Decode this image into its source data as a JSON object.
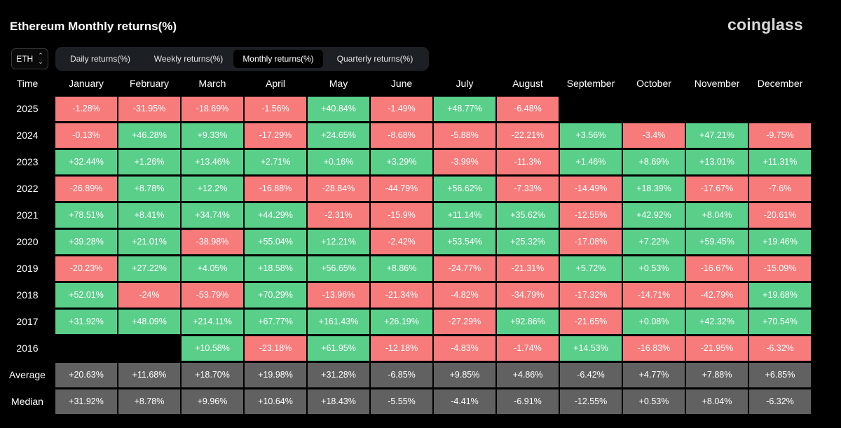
{
  "header": {
    "title": "Ethereum Monthly returns(%)",
    "brand": "coinglass",
    "asset": "ETH"
  },
  "tabs": [
    {
      "label": "Daily returns(%)",
      "active": false
    },
    {
      "label": "Weekly returns(%)",
      "active": false
    },
    {
      "label": "Monthly returns(%)",
      "active": true
    },
    {
      "label": "Quarterly returns(%)",
      "active": false
    }
  ],
  "colors": {
    "positive": "#59cf8a",
    "negative": "#f77b7b",
    "summary": "#616161",
    "background": "#000000"
  },
  "chart_data": {
    "type": "table",
    "corner_label": "Time",
    "columns": [
      "January",
      "February",
      "March",
      "April",
      "May",
      "June",
      "July",
      "August",
      "September",
      "October",
      "November",
      "December"
    ],
    "rows": [
      {
        "label": "2025",
        "values": [
          "-1.28%",
          "-31.95%",
          "-18.69%",
          "-1.56%",
          "+40.84%",
          "-1.49%",
          "+48.77%",
          "-6.48%",
          "",
          "",
          "",
          ""
        ]
      },
      {
        "label": "2024",
        "values": [
          "-0.13%",
          "+46.28%",
          "+9.33%",
          "-17.29%",
          "+24.65%",
          "-8.68%",
          "-5.88%",
          "-22.21%",
          "+3.56%",
          "-3.4%",
          "+47.21%",
          "-9.75%"
        ]
      },
      {
        "label": "2023",
        "values": [
          "+32.44%",
          "+1.26%",
          "+13.46%",
          "+2.71%",
          "+0.16%",
          "+3.29%",
          "-3.99%",
          "-11.3%",
          "+1.46%",
          "+8.69%",
          "+13.01%",
          "+11.31%"
        ]
      },
      {
        "label": "2022",
        "values": [
          "-26.89%",
          "+8.78%",
          "+12.2%",
          "-16.88%",
          "-28.84%",
          "-44.79%",
          "+56.62%",
          "-7.33%",
          "-14.49%",
          "+18.39%",
          "-17.67%",
          "-7.6%"
        ]
      },
      {
        "label": "2021",
        "values": [
          "+78.51%",
          "+8.41%",
          "+34.74%",
          "+44.29%",
          "-2.31%",
          "-15.9%",
          "+11.14%",
          "+35.62%",
          "-12.55%",
          "+42.92%",
          "+8.04%",
          "-20.61%"
        ]
      },
      {
        "label": "2020",
        "values": [
          "+39.28%",
          "+21.01%",
          "-38.98%",
          "+55.04%",
          "+12.21%",
          "-2.42%",
          "+53.54%",
          "+25.32%",
          "-17.08%",
          "+7.22%",
          "+59.45%",
          "+19.46%"
        ]
      },
      {
        "label": "2019",
        "values": [
          "-20.23%",
          "+27.22%",
          "+4.05%",
          "+18.58%",
          "+56.65%",
          "+8.86%",
          "-24.77%",
          "-21.31%",
          "+5.72%",
          "+0.53%",
          "-16.67%",
          "-15.09%"
        ]
      },
      {
        "label": "2018",
        "values": [
          "+52.01%",
          "-24%",
          "-53.79%",
          "+70.29%",
          "-13.96%",
          "-21.34%",
          "-4.82%",
          "-34.79%",
          "-17.32%",
          "-14.71%",
          "-42.79%",
          "+19.68%"
        ]
      },
      {
        "label": "2017",
        "values": [
          "+31.92%",
          "+48.09%",
          "+214.11%",
          "+67.77%",
          "+161.43%",
          "+26.19%",
          "-27.29%",
          "+92.86%",
          "-21.65%",
          "+0.08%",
          "+42.32%",
          "+70.54%"
        ]
      },
      {
        "label": "2016",
        "values": [
          "",
          "",
          "+10.58%",
          "-23.18%",
          "+61.95%",
          "-12.18%",
          "-4.83%",
          "-1.74%",
          "+14.53%",
          "-16.83%",
          "-21.95%",
          "-6.32%"
        ]
      }
    ],
    "summary_rows": [
      {
        "label": "Average",
        "values": [
          "+20.63%",
          "+11.68%",
          "+18.70%",
          "+19.98%",
          "+31.28%",
          "-6.85%",
          "+9.85%",
          "+4.86%",
          "-6.42%",
          "+4.77%",
          "+7.88%",
          "+6.85%"
        ]
      },
      {
        "label": "Median",
        "values": [
          "+31.92%",
          "+8.78%",
          "+9.96%",
          "+10.64%",
          "+18.43%",
          "-5.55%",
          "-4.41%",
          "-6.91%",
          "-12.55%",
          "+0.53%",
          "+8.04%",
          "-6.32%"
        ]
      }
    ]
  }
}
